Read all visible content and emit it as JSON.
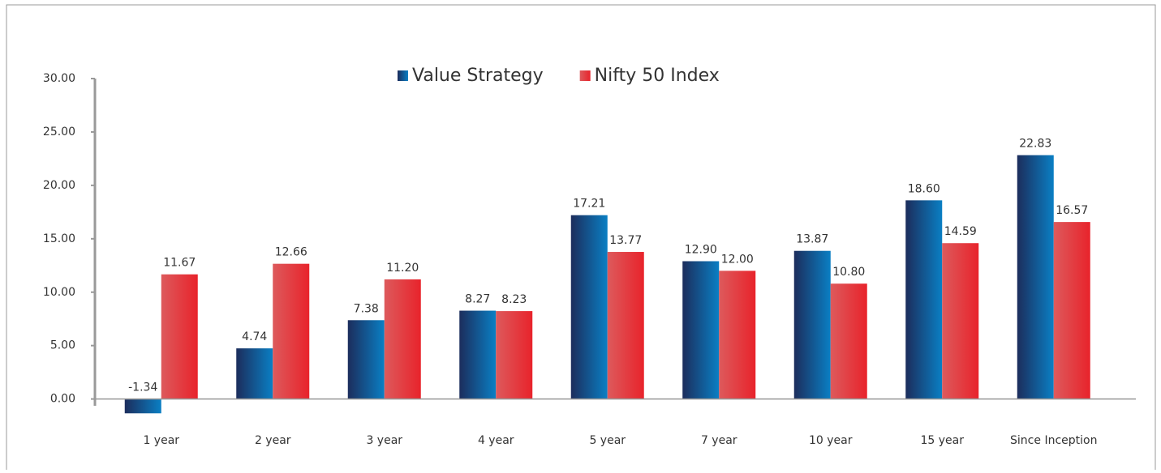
{
  "chart_data": {
    "type": "bar",
    "categories": [
      "1 year",
      "2 year",
      "3 year",
      "4 year",
      "5 year",
      "7 year",
      "10 year",
      "15 year",
      "Since Inception"
    ],
    "series": [
      {
        "name": "Value Strategy",
        "color": "#0a7fc4",
        "values": [
          -1.34,
          4.74,
          7.38,
          8.27,
          17.21,
          12.9,
          13.87,
          18.6,
          22.83
        ],
        "value_labels": [
          "-1.34",
          "4.74",
          "7.38",
          "8.27",
          "17.21",
          "12.90",
          "13.87",
          "18.60",
          "22.83"
        ]
      },
      {
        "name": "Nifty 50 Index",
        "color": "#e8232b",
        "values": [
          11.67,
          12.66,
          11.2,
          8.23,
          13.77,
          12.0,
          10.8,
          14.59,
          16.57
        ],
        "value_labels": [
          "11.67",
          "12.66",
          "11.20",
          "8.23",
          "13.77",
          "12.00",
          "10.80",
          "14.59",
          "16.57"
        ]
      }
    ],
    "ylim": [
      -2,
      30
    ],
    "yticks": [
      {
        "value": 0,
        "label": "0.00"
      },
      {
        "value": 5,
        "label": "5.00"
      },
      {
        "value": 10,
        "label": "10.00"
      },
      {
        "value": 15,
        "label": "15.00"
      },
      {
        "value": 20,
        "label": "20.00"
      },
      {
        "value": 25,
        "label": "25.00"
      },
      {
        "value": 30,
        "label": "30.00"
      }
    ],
    "grid": false,
    "legend": "top"
  }
}
